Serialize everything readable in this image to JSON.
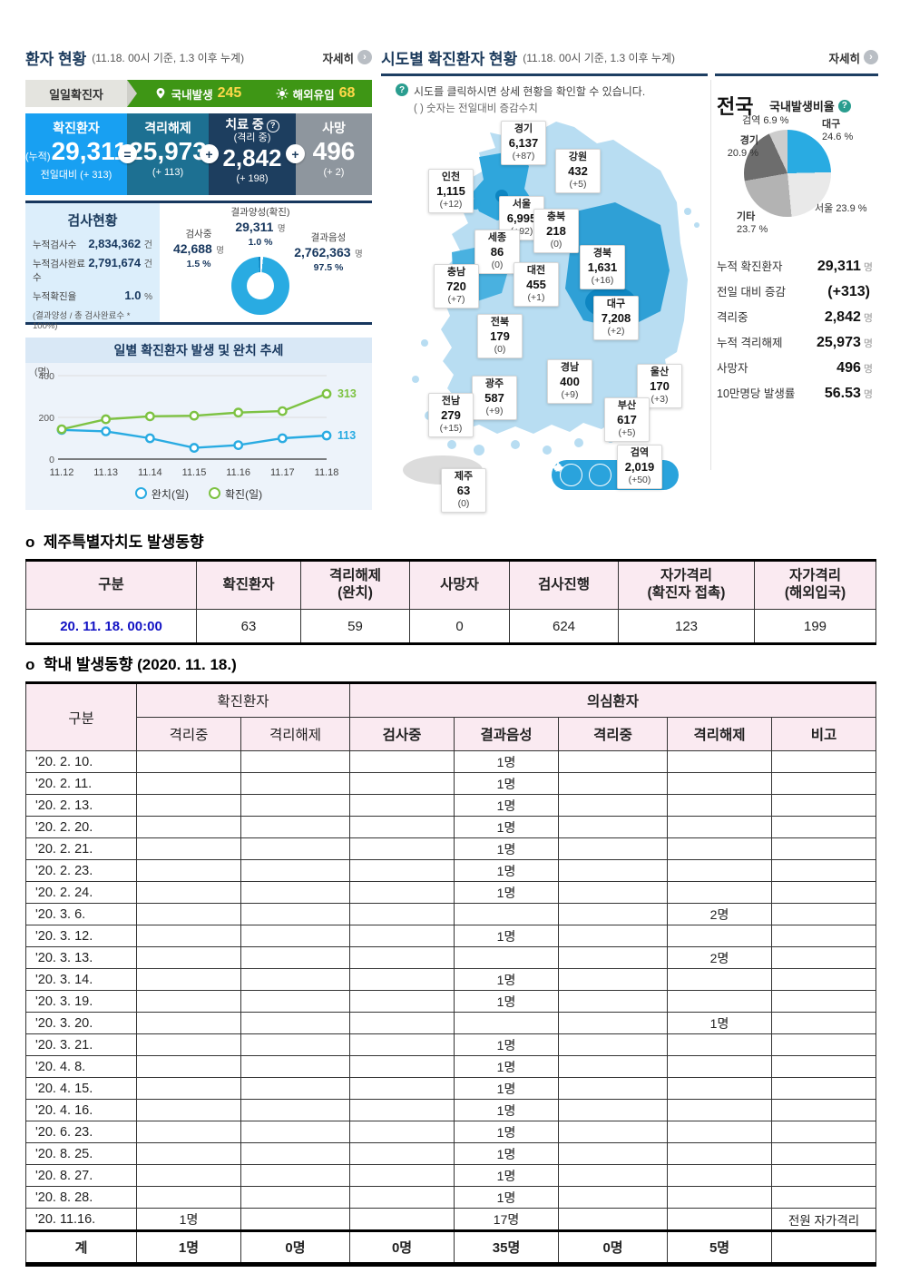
{
  "colors": {
    "accent_blue": "#29abe2",
    "navy": "#17375e",
    "green_bar": "#3e9615",
    "yellow_num": "#ffd94a",
    "pink_header": "#faeaf1",
    "map_light": "#b8ddf2",
    "map_mid": "#2fa6dc",
    "map_dark": "#0e86c2"
  },
  "left_panel": {
    "title": "환자 현황",
    "title_sub": "(11.18. 00시 기준, 1.3 이후 누계)",
    "more": "자세히",
    "daily": {
      "tab": "일일확진자",
      "domestic_label": "국내발생",
      "domestic_value": "245",
      "imported_label": "해외유입",
      "imported_value": "68"
    },
    "stats": {
      "confirmed": {
        "label": "확진환자",
        "prefix": "(누적)",
        "value": "29,311",
        "delta": "전일대비 (+ 313)"
      },
      "released": {
        "label": "격리해제",
        "value": "25,973",
        "delta": "(+ 113)"
      },
      "treating": {
        "label": "치료 중",
        "sub": "(격리 중)",
        "value": "2,842",
        "delta": "(+ 198)"
      },
      "deaths": {
        "label": "사망",
        "value": "496",
        "delta": "(+ 2)"
      },
      "op1": "=",
      "op2": "+",
      "op3": "+"
    },
    "test": {
      "title": "검사현황",
      "rows": [
        {
          "label": "누적검사수",
          "value": "2,834,362",
          "unit": "건"
        },
        {
          "label": "누적검사완료수",
          "value": "2,791,674",
          "unit": "건"
        },
        {
          "label": "누적확진율",
          "value": "1.0",
          "unit": "%"
        }
      ],
      "note": "(결과양성 / 총 검사완료수 * 100%)",
      "donut_labels": {
        "positive": {
          "name": "결과양성(확진)",
          "value": "29,311",
          "unit": "명",
          "pct": "1.0 %"
        },
        "testing": {
          "name": "검사중",
          "value": "42,688",
          "unit": "명",
          "pct": "1.5 %"
        },
        "negative": {
          "name": "결과음성",
          "value": "2,762,363",
          "unit": "명",
          "pct": "97.5 %"
        }
      }
    }
  },
  "right_panel": {
    "title": "시도별 확진환자 현황",
    "title_sub": "(11.18. 00시 기준, 1.3 이후 누계)",
    "more": "자세히",
    "note1": "시도를 클릭하시면 상세 현황을 확인할 수 있습니다.",
    "note2": "( ) 숫자는 전일대비 증감수치",
    "regions": [
      {
        "name": "경기",
        "value": "6,137",
        "delta": "(+87)"
      },
      {
        "name": "강원",
        "value": "432",
        "delta": "(+5)"
      },
      {
        "name": "인천",
        "value": "1,115",
        "delta": "(+12)"
      },
      {
        "name": "서울",
        "value": "6,995",
        "delta": "(+92)"
      },
      {
        "name": "충북",
        "value": "218",
        "delta": "(0)"
      },
      {
        "name": "세종",
        "value": "86",
        "delta": "(0)"
      },
      {
        "name": "충남",
        "value": "720",
        "delta": "(+7)"
      },
      {
        "name": "대전",
        "value": "455",
        "delta": "(+1)"
      },
      {
        "name": "경북",
        "value": "1,631",
        "delta": "(+16)"
      },
      {
        "name": "대구",
        "value": "7,208",
        "delta": "(+2)"
      },
      {
        "name": "전북",
        "value": "179",
        "delta": "(0)"
      },
      {
        "name": "경남",
        "value": "400",
        "delta": "(+9)"
      },
      {
        "name": "울산",
        "value": "170",
        "delta": "(+3)"
      },
      {
        "name": "광주",
        "value": "587",
        "delta": "(+9)"
      },
      {
        "name": "전남",
        "value": "279",
        "delta": "(+15)"
      },
      {
        "name": "부산",
        "value": "617",
        "delta": "(+5)"
      },
      {
        "name": "제주",
        "value": "63",
        "delta": "(0)"
      }
    ],
    "quarantine": {
      "name": "검역",
      "value": "2,019",
      "delta": "(+50)"
    },
    "nationwide": {
      "title": "전국",
      "ratio_label": "국내발생비율",
      "stats": [
        {
          "label": "누적 확진환자",
          "value": "29,311",
          "unit": "명"
        },
        {
          "label": "전일 대비 증감",
          "value": "(+313)",
          "unit": ""
        },
        {
          "label": "격리중",
          "value": "2,842",
          "unit": "명"
        },
        {
          "label": "누적 격리해제",
          "value": "25,973",
          "unit": "명"
        },
        {
          "label": "사망자",
          "value": "496",
          "unit": "명"
        },
        {
          "label": "10만명당 발생률",
          "value": "56.53",
          "unit": "명"
        }
      ]
    }
  },
  "chart_data": [
    {
      "type": "line",
      "title": "일별 확진환자 발생 및 완치 추세",
      "ylabel": "(명)",
      "ylim": [
        0,
        400
      ],
      "yticks": [
        0,
        200,
        400
      ],
      "grid": true,
      "legend_position": "bottom",
      "categories": [
        "11.12",
        "11.13",
        "11.14",
        "11.15",
        "11.16",
        "11.17",
        "11.18"
      ],
      "series": [
        {
          "name": "완치(일)",
          "color": "#29abe2",
          "values": [
            140,
            133,
            100,
            54,
            67,
            100,
            113
          ]
        },
        {
          "name": "확진(일)",
          "color": "#7dc242",
          "values": [
            143,
            191,
            205,
            208,
            223,
            230,
            313
          ]
        }
      ],
      "end_labels": [
        "113",
        "313"
      ]
    },
    {
      "type": "pie",
      "subtype": "donut",
      "title": "검사현황 비율",
      "slices": [
        {
          "name": "검사중",
          "pct": 1.5,
          "pct_label": "1.5 %",
          "color": "#ffffff"
        },
        {
          "name": "결과음성",
          "pct": 97.5,
          "pct_label": "97.5 %",
          "color": "#29abe2"
        },
        {
          "name": "결과양성(확진)",
          "pct": 1.0,
          "pct_label": "1.0 %",
          "color": "#0f84c0"
        }
      ]
    },
    {
      "type": "pie",
      "title": "국내발생비율",
      "legend_position": "around",
      "slices": [
        {
          "name": "대구",
          "pct": 24.6,
          "pct_label": "24.6 %",
          "color": "#29abe2"
        },
        {
          "name": "서울",
          "pct": 23.9,
          "pct_label": "23.9 %",
          "color": "#e9e9e9"
        },
        {
          "name": "기타",
          "pct": 23.7,
          "pct_label": "23.7 %",
          "color": "#b3b3b3"
        },
        {
          "name": "경기",
          "pct": 20.9,
          "pct_label": "20.9 %",
          "color": "#6d6d6d"
        },
        {
          "name": "검역",
          "pct": 6.9,
          "pct_label": "6.9 %",
          "color": "#cdcdcd"
        }
      ]
    }
  ],
  "jeju_section": {
    "title": "o  제주특별자치도 발생동향",
    "headers": [
      "구분",
      "확진환자",
      "격리해제\n(완치)",
      "사망자",
      "검사진행",
      "자가격리\n(확진자 접촉)",
      "자가격리\n(해외입국)"
    ],
    "row": {
      "date": "20. 11. 18. 00:00",
      "cells": [
        "63",
        "59",
        "0",
        "624",
        "123",
        "199"
      ]
    }
  },
  "school_section": {
    "title": "o  학내 발생동향 (2020. 11. 18.)",
    "group_headers": {
      "col1": "구분",
      "confirmed": "확진환자",
      "suspected": "의심환자"
    },
    "sub_headers": [
      "격리중",
      "격리해제",
      "검사중",
      "결과음성",
      "격리중",
      "격리해제",
      "비고"
    ],
    "rows": [
      {
        "date": "'20. 2. 10.",
        "cells": [
          "",
          "",
          "",
          "1명",
          "",
          "",
          ""
        ]
      },
      {
        "date": "'20. 2. 11.",
        "cells": [
          "",
          "",
          "",
          "1명",
          "",
          "",
          ""
        ]
      },
      {
        "date": "'20. 2. 13.",
        "cells": [
          "",
          "",
          "",
          "1명",
          "",
          "",
          ""
        ]
      },
      {
        "date": "'20. 2. 20.",
        "cells": [
          "",
          "",
          "",
          "1명",
          "",
          "",
          ""
        ]
      },
      {
        "date": "'20. 2. 21.",
        "cells": [
          "",
          "",
          "",
          "1명",
          "",
          "",
          ""
        ]
      },
      {
        "date": "'20. 2. 23.",
        "cells": [
          "",
          "",
          "",
          "1명",
          "",
          "",
          ""
        ]
      },
      {
        "date": "'20. 2. 24.",
        "cells": [
          "",
          "",
          "",
          "1명",
          "",
          "",
          ""
        ]
      },
      {
        "date": "'20. 3.  6.",
        "cells": [
          "",
          "",
          "",
          "",
          "",
          "2명",
          ""
        ]
      },
      {
        "date": "'20. 3. 12.",
        "cells": [
          "",
          "",
          "",
          "1명",
          "",
          "",
          ""
        ]
      },
      {
        "date": "'20. 3. 13.",
        "cells": [
          "",
          "",
          "",
          "",
          "",
          "2명",
          ""
        ]
      },
      {
        "date": "'20. 3. 14.",
        "cells": [
          "",
          "",
          "",
          "1명",
          "",
          "",
          ""
        ]
      },
      {
        "date": "'20. 3. 19.",
        "cells": [
          "",
          "",
          "",
          "1명",
          "",
          "",
          ""
        ]
      },
      {
        "date": "'20. 3. 20.",
        "cells": [
          "",
          "",
          "",
          "",
          "",
          "1명",
          ""
        ]
      },
      {
        "date": "'20. 3. 21.",
        "cells": [
          "",
          "",
          "",
          "1명",
          "",
          "",
          ""
        ]
      },
      {
        "date": "'20. 4.  8.",
        "cells": [
          "",
          "",
          "",
          "1명",
          "",
          "",
          ""
        ]
      },
      {
        "date": "'20. 4. 15.",
        "cells": [
          "",
          "",
          "",
          "1명",
          "",
          "",
          ""
        ]
      },
      {
        "date": "'20. 4. 16.",
        "cells": [
          "",
          "",
          "",
          "1명",
          "",
          "",
          ""
        ]
      },
      {
        "date": "'20. 6. 23.",
        "cells": [
          "",
          "",
          "",
          "1명",
          "",
          "",
          ""
        ]
      },
      {
        "date": "'20. 8. 25.",
        "cells": [
          "",
          "",
          "",
          "1명",
          "",
          "",
          ""
        ]
      },
      {
        "date": "'20. 8. 27.",
        "cells": [
          "",
          "",
          "",
          "1명",
          "",
          "",
          ""
        ]
      },
      {
        "date": "'20. 8. 28.",
        "cells": [
          "",
          "",
          "",
          "1명",
          "",
          "",
          ""
        ]
      },
      {
        "date": "'20. 11.16.",
        "cells": [
          "1명",
          "",
          "",
          "17명",
          "",
          "",
          "전원 자가격리"
        ]
      }
    ],
    "total": {
      "label": "계",
      "cells": [
        "1명",
        "0명",
        "0명",
        "35명",
        "0명",
        "5명",
        ""
      ]
    }
  }
}
